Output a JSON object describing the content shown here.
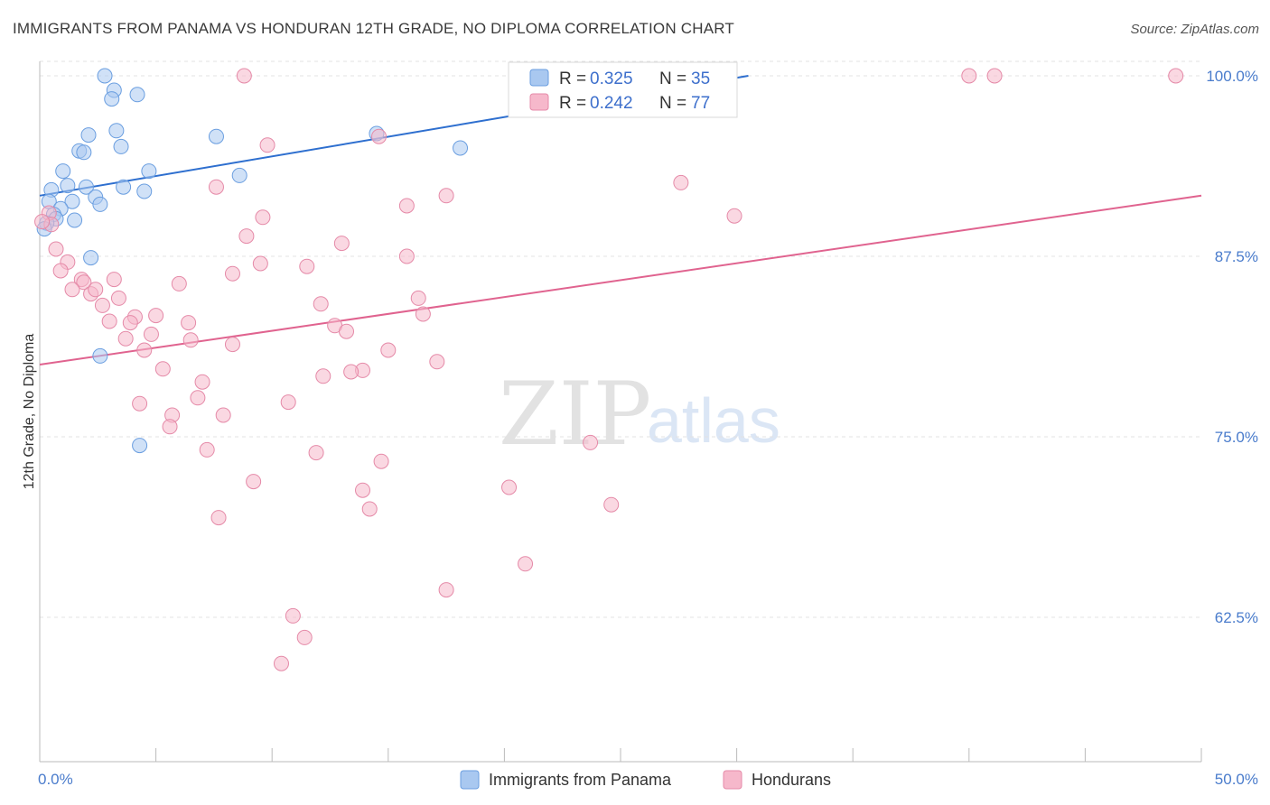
{
  "header": {
    "title": "IMMIGRANTS FROM PANAMA VS HONDURAN 12TH GRADE, NO DIPLOMA CORRELATION CHART",
    "source": "Source: ZipAtlas.com"
  },
  "watermark": {
    "zip": "ZIP",
    "atlas": "atlas"
  },
  "legend": {
    "r_label": "R =",
    "n_label": "N =",
    "rows": [
      {
        "r": "0.325",
        "n": "35",
        "color": "#a9c8f0",
        "stroke": "#6a9ee0"
      },
      {
        "r": "0.242",
        "n": "77",
        "color": "#f6b8cb",
        "stroke": "#e58aa8"
      }
    ]
  },
  "bottom_legend": [
    {
      "label": "Immigrants from Panama",
      "color": "#a9c8f0",
      "stroke": "#6a9ee0"
    },
    {
      "label": "Hondurans",
      "color": "#f6b8cb",
      "stroke": "#e58aa8"
    }
  ],
  "chart_data": {
    "type": "scatter",
    "title": "IMMIGRANTS FROM PANAMA VS HONDURAN 12TH GRADE, NO DIPLOMA CORRELATION CHART",
    "xlabel": "",
    "ylabel": "12th Grade, No Diploma",
    "xlim": [
      0,
      50
    ],
    "ylim": [
      52.5,
      101.5
    ],
    "x_tick_labels": [
      "0.0%",
      "50.0%"
    ],
    "y_ticks": [
      62.5,
      75.0,
      87.5,
      100.0
    ],
    "y_tick_labels": [
      "62.5%",
      "75.0%",
      "87.5%",
      "100.0%"
    ],
    "grid": true,
    "legend_position": "top-center",
    "series": [
      {
        "name": "Immigrants from Panama",
        "color": "#6a9ee0",
        "fill": "#a9c8f0",
        "trendline": {
          "x": [
            0,
            30.5
          ],
          "y": [
            91.7,
            100.0
          ],
          "color": "#2e6fcf"
        },
        "points": [
          [
            2.8,
            100.0
          ],
          [
            3.2,
            99.0
          ],
          [
            4.2,
            98.7
          ],
          [
            3.1,
            98.4
          ],
          [
            3.3,
            96.2
          ],
          [
            2.1,
            95.9
          ],
          [
            3.5,
            95.1
          ],
          [
            1.7,
            94.8
          ],
          [
            1.9,
            94.7
          ],
          [
            1.0,
            93.4
          ],
          [
            4.7,
            93.4
          ],
          [
            1.2,
            92.4
          ],
          [
            2.0,
            92.3
          ],
          [
            3.6,
            92.3
          ],
          [
            0.5,
            92.1
          ],
          [
            4.5,
            92.0
          ],
          [
            2.4,
            91.6
          ],
          [
            0.4,
            91.3
          ],
          [
            1.4,
            91.3
          ],
          [
            2.6,
            91.1
          ],
          [
            0.9,
            90.8
          ],
          [
            0.6,
            90.4
          ],
          [
            0.7,
            90.1
          ],
          [
            1.5,
            90.0
          ],
          [
            0.3,
            89.8
          ],
          [
            0.2,
            89.4
          ],
          [
            2.2,
            87.4
          ],
          [
            2.6,
            80.6
          ],
          [
            4.3,
            74.4
          ],
          [
            7.6,
            95.8
          ],
          [
            8.6,
            93.1
          ],
          [
            14.5,
            96.0
          ],
          [
            18.1,
            95.0
          ],
          [
            27.2,
            100.0
          ],
          [
            28.3,
            100.0
          ]
        ]
      },
      {
        "name": "Hondurans",
        "color": "#e58aa8",
        "fill": "#f6b8cb",
        "trendline": {
          "x": [
            0,
            50
          ],
          "y": [
            80.0,
            91.7
          ],
          "color": "#e0638f"
        },
        "points": [
          [
            8.8,
            100.0
          ],
          [
            27.8,
            100.0
          ],
          [
            40.0,
            100.0
          ],
          [
            41.1,
            100.0
          ],
          [
            48.9,
            100.0
          ],
          [
            14.6,
            95.8
          ],
          [
            9.8,
            95.2
          ],
          [
            7.6,
            92.3
          ],
          [
            27.6,
            92.6
          ],
          [
            17.5,
            91.7
          ],
          [
            15.8,
            91.0
          ],
          [
            29.9,
            90.3
          ],
          [
            9.6,
            90.2
          ],
          [
            0.4,
            90.5
          ],
          [
            0.5,
            89.7
          ],
          [
            8.9,
            88.9
          ],
          [
            13.0,
            88.4
          ],
          [
            0.7,
            88.0
          ],
          [
            15.8,
            87.5
          ],
          [
            9.5,
            87.0
          ],
          [
            11.5,
            86.8
          ],
          [
            1.2,
            87.1
          ],
          [
            0.9,
            86.5
          ],
          [
            8.3,
            86.3
          ],
          [
            3.2,
            85.9
          ],
          [
            6.0,
            85.6
          ],
          [
            1.8,
            85.9
          ],
          [
            1.9,
            85.7
          ],
          [
            1.4,
            85.2
          ],
          [
            2.2,
            84.9
          ],
          [
            2.4,
            85.2
          ],
          [
            3.4,
            84.6
          ],
          [
            16.3,
            84.6
          ],
          [
            12.1,
            84.2
          ],
          [
            2.7,
            84.1
          ],
          [
            16.5,
            83.5
          ],
          [
            5.0,
            83.4
          ],
          [
            4.1,
            83.3
          ],
          [
            3.0,
            83.0
          ],
          [
            6.4,
            82.9
          ],
          [
            3.9,
            82.9
          ],
          [
            12.7,
            82.7
          ],
          [
            13.2,
            82.3
          ],
          [
            4.8,
            82.1
          ],
          [
            3.7,
            81.8
          ],
          [
            6.5,
            81.7
          ],
          [
            8.3,
            81.4
          ],
          [
            4.5,
            81.0
          ],
          [
            15.0,
            81.0
          ],
          [
            17.1,
            80.2
          ],
          [
            5.3,
            79.7
          ],
          [
            13.9,
            79.6
          ],
          [
            13.4,
            79.5
          ],
          [
            12.2,
            79.2
          ],
          [
            7.0,
            78.8
          ],
          [
            6.8,
            77.7
          ],
          [
            4.3,
            77.3
          ],
          [
            10.7,
            77.4
          ],
          [
            5.7,
            76.5
          ],
          [
            7.9,
            76.5
          ],
          [
            5.6,
            75.7
          ],
          [
            23.7,
            74.6
          ],
          [
            7.2,
            74.1
          ],
          [
            11.9,
            73.9
          ],
          [
            14.7,
            73.3
          ],
          [
            9.2,
            71.9
          ],
          [
            20.2,
            71.5
          ],
          [
            13.9,
            71.3
          ],
          [
            24.6,
            70.3
          ],
          [
            14.2,
            70.0
          ],
          [
            7.7,
            69.4
          ],
          [
            20.9,
            66.2
          ],
          [
            17.5,
            64.4
          ],
          [
            10.9,
            62.6
          ],
          [
            11.4,
            61.1
          ],
          [
            10.4,
            59.3
          ],
          [
            0.1,
            89.9
          ]
        ]
      }
    ]
  }
}
